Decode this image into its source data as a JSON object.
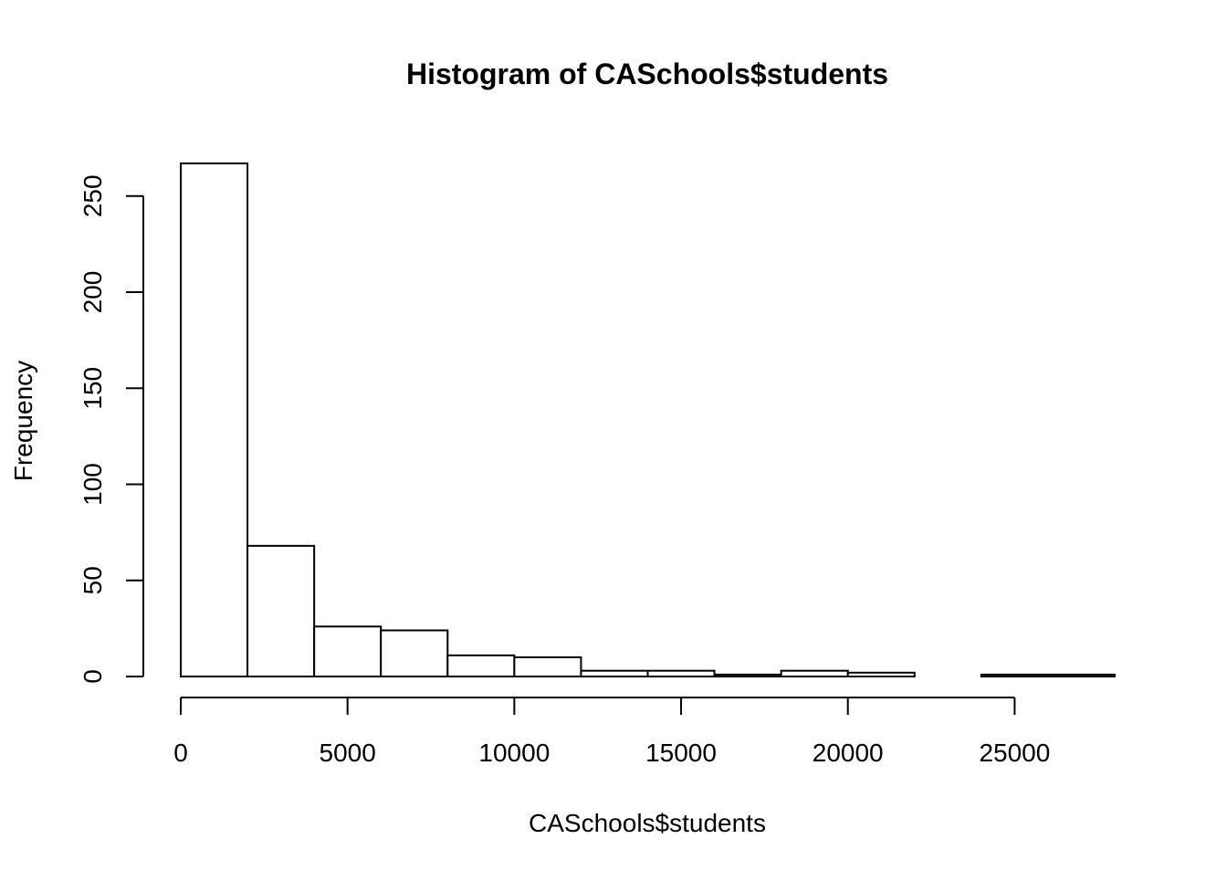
{
  "chart_data": {
    "type": "bar",
    "title": "Histogram of CASchools$students",
    "xlabel": "CASchools$students",
    "ylabel": "Frequency",
    "xlim": [
      0,
      28000
    ],
    "ylim": [
      0,
      267
    ],
    "x_ticks": [
      0,
      5000,
      10000,
      15000,
      20000,
      25000
    ],
    "x_tick_labels": [
      "0",
      "5000",
      "10000",
      "15000",
      "20000",
      "25000"
    ],
    "y_ticks": [
      0,
      50,
      100,
      150,
      200,
      250
    ],
    "y_tick_labels": [
      "0",
      "50",
      "100",
      "150",
      "200",
      "250"
    ],
    "bin_width": 2000,
    "bins": [
      {
        "start": 0,
        "end": 2000,
        "count": 267
      },
      {
        "start": 2000,
        "end": 4000,
        "count": 68
      },
      {
        "start": 4000,
        "end": 6000,
        "count": 26
      },
      {
        "start": 6000,
        "end": 8000,
        "count": 24
      },
      {
        "start": 8000,
        "end": 10000,
        "count": 11
      },
      {
        "start": 10000,
        "end": 12000,
        "count": 10
      },
      {
        "start": 12000,
        "end": 14000,
        "count": 3
      },
      {
        "start": 14000,
        "end": 16000,
        "count": 3
      },
      {
        "start": 16000,
        "end": 18000,
        "count": 1
      },
      {
        "start": 18000,
        "end": 20000,
        "count": 3
      },
      {
        "start": 20000,
        "end": 22000,
        "count": 2
      },
      {
        "start": 22000,
        "end": 24000,
        "count": 0
      },
      {
        "start": 24000,
        "end": 26000,
        "count": 1
      },
      {
        "start": 26000,
        "end": 28000,
        "count": 1
      }
    ],
    "grid": false,
    "bar_fill": "#ffffff",
    "bar_stroke": "#000000"
  }
}
